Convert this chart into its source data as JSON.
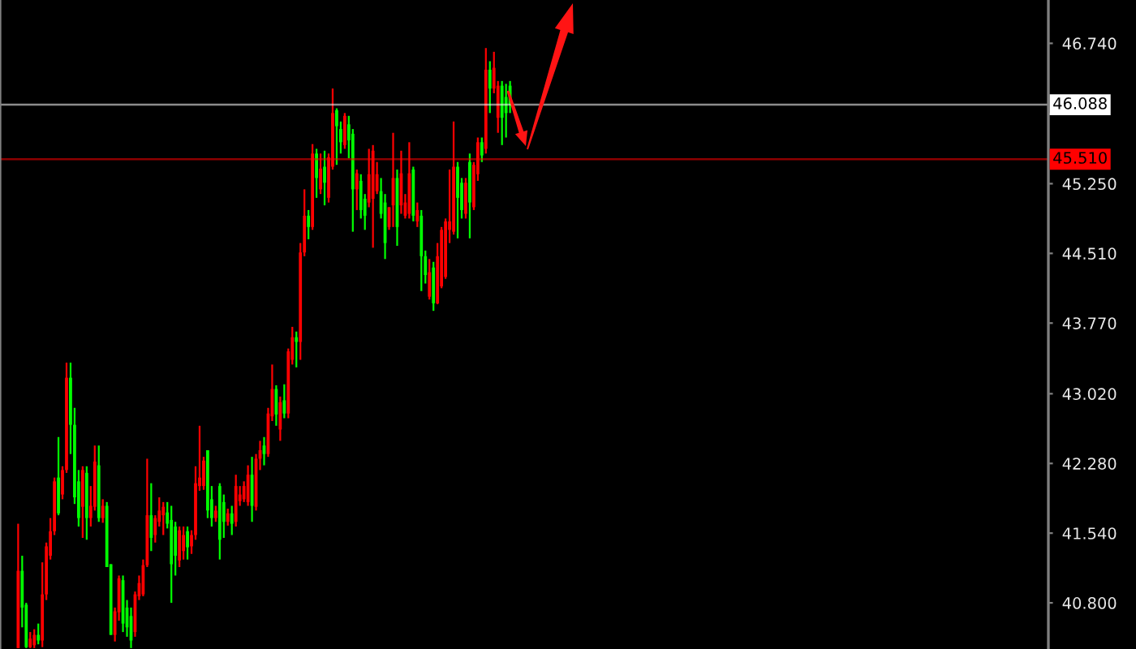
{
  "chart_data": {
    "type": "candlestick",
    "categories": [
      null,
      null,
      null,
      null,
      null,
      null,
      null,
      null,
      null,
      null,
      null,
      null,
      null,
      null,
      null,
      null,
      null,
      null,
      null,
      null,
      null,
      null,
      null,
      null,
      null,
      null,
      null,
      null,
      null,
      null,
      null,
      null,
      null,
      null,
      null,
      null,
      null,
      null,
      null,
      null,
      null,
      null,
      null,
      null,
      null,
      null,
      null,
      null,
      null,
      null,
      null,
      null,
      null,
      null,
      null,
      null,
      null,
      null,
      null,
      null,
      null,
      null,
      null,
      null,
      null,
      null,
      null,
      null,
      null,
      null,
      null,
      null,
      null,
      null,
      null,
      null,
      null,
      null,
      null,
      null,
      null,
      null,
      null,
      null,
      null,
      null,
      null,
      null,
      null,
      null,
      null,
      null,
      null,
      null,
      null,
      null,
      null,
      null,
      null,
      null,
      null,
      null,
      null,
      null,
      null,
      null,
      null,
      null,
      null,
      null,
      null,
      null,
      null,
      null,
      null,
      null,
      null,
      null,
      null,
      null,
      null,
      null,
      null,
      null,
      null,
      null,
      null,
      null,
      null,
      null,
      null,
      null,
      null,
      null,
      null,
      null,
      null,
      null,
      null,
      null,
      null,
      null,
      null,
      null,
      null,
      null,
      null,
      null,
      null,
      null,
      null,
      null,
      null,
      null,
      null,
      null,
      null,
      null,
      null,
      null,
      null,
      null,
      null,
      null,
      null,
      null,
      null,
      null,
      null,
      null,
      null,
      null,
      null,
      null,
      null,
      null,
      null,
      null,
      null,
      null,
      null,
      null,
      null,
      null,
      null,
      null,
      null,
      null,
      null,
      null,
      null,
      null,
      null,
      null,
      null,
      null,
      null,
      null,
      null,
      null,
      null,
      null,
      null,
      null,
      null,
      null,
      null,
      null,
      null,
      null,
      null,
      null,
      null,
      null,
      null,
      null,
      null,
      null,
      null,
      null,
      null,
      null,
      null,
      null,
      null,
      null,
      null,
      null,
      null,
      null,
      null,
      null,
      null,
      null,
      null,
      null,
      null,
      null,
      null,
      null,
      null,
      null,
      null,
      null,
      null,
      null,
      null,
      null,
      null,
      null,
      null,
      null,
      null,
      null,
      null,
      null,
      null,
      null,
      null,
      null
    ],
    "ohlc": [
      null,
      null,
      null,
      null,
      [
        40.32,
        41.64,
        40.32,
        41.14
      ],
      [
        41.14,
        41.3,
        40.54,
        40.75
      ],
      [
        40.78,
        40.8,
        40.32,
        40.33
      ],
      [
        40.33,
        40.49,
        40.32,
        40.42
      ],
      [
        40.35,
        40.52,
        40.32,
        40.46
      ],
      [
        40.46,
        40.58,
        40.36,
        40.4
      ],
      [
        40.4,
        41.23,
        40.33,
        40.89
      ],
      [
        40.89,
        41.44,
        40.83,
        41.4
      ],
      [
        41.3,
        41.7,
        41.26,
        41.56
      ],
      [
        41.56,
        42.13,
        41.52,
        42.09
      ],
      [
        42.13,
        42.56,
        41.73,
        41.75
      ],
      [
        41.95,
        42.25,
        41.9,
        42.21
      ],
      [
        42.21,
        43.35,
        42.18,
        43.19
      ],
      [
        43.19,
        43.35,
        42.38,
        42.69
      ],
      [
        42.69,
        42.87,
        41.85,
        41.92
      ],
      [
        42.09,
        42.21,
        41.61,
        41.7
      ],
      [
        41.82,
        42.25,
        41.49,
        42.21
      ],
      [
        42.18,
        42.25,
        41.47,
        41.7
      ],
      [
        41.7,
        42.04,
        41.61,
        41.83
      ],
      [
        41.82,
        42.47,
        41.78,
        42.3
      ],
      [
        42.26,
        42.47,
        41.66,
        41.7
      ],
      [
        41.7,
        41.9,
        41.65,
        41.83
      ],
      [
        41.83,
        41.87,
        41.18,
        41.18
      ],
      [
        41.21,
        41.21,
        40.46,
        40.46
      ],
      [
        40.46,
        40.75,
        40.39,
        40.71
      ],
      [
        40.7,
        41.09,
        40.61,
        41.06
      ],
      [
        41.04,
        41.09,
        40.49,
        40.58
      ],
      [
        40.75,
        40.83,
        40.44,
        40.54
      ],
      [
        40.66,
        40.75,
        40.32,
        40.4
      ],
      [
        40.49,
        40.92,
        40.44,
        40.89
      ],
      [
        40.87,
        41.09,
        40.83,
        41.01
      ],
      [
        40.89,
        41.26,
        40.87,
        41.2
      ],
      [
        41.2,
        42.33,
        41.18,
        41.73
      ],
      [
        41.73,
        42.07,
        41.35,
        41.49
      ],
      [
        41.52,
        41.73,
        41.44,
        41.7
      ],
      [
        41.66,
        41.92,
        41.61,
        41.78
      ],
      [
        41.73,
        41.87,
        41.52,
        41.82
      ],
      [
        41.76,
        41.87,
        41.59,
        41.64
      ],
      [
        41.68,
        41.83,
        40.8,
        41.21
      ],
      [
        41.61,
        41.66,
        41.09,
        41.3
      ],
      [
        41.25,
        41.61,
        41.18,
        41.57
      ],
      [
        41.35,
        41.61,
        41.26,
        41.52
      ],
      [
        41.56,
        41.61,
        41.26,
        41.39
      ],
      [
        41.4,
        41.57,
        41.32,
        41.52
      ],
      [
        41.52,
        42.25,
        41.47,
        42.07
      ],
      [
        42.04,
        42.68,
        41.99,
        42.13
      ],
      [
        42.04,
        42.35,
        42.0,
        42.31
      ],
      [
        42.42,
        42.42,
        41.7,
        41.78
      ],
      [
        41.9,
        42.04,
        41.61,
        41.7
      ],
      [
        41.7,
        41.83,
        41.66,
        41.78
      ],
      [
        42.04,
        42.07,
        41.26,
        41.47
      ],
      [
        41.87,
        41.95,
        41.49,
        41.66
      ],
      [
        41.66,
        41.8,
        41.62,
        41.75
      ],
      [
        41.75,
        41.83,
        41.52,
        41.64
      ],
      [
        41.66,
        42.16,
        41.61,
        42.04
      ],
      [
        41.88,
        42.04,
        41.83,
        41.95
      ],
      [
        41.9,
        42.09,
        41.87,
        42.04
      ],
      [
        41.87,
        42.26,
        41.83,
        42.16
      ],
      [
        42.16,
        42.35,
        41.66,
        41.83
      ],
      [
        41.82,
        42.38,
        41.78,
        42.33
      ],
      [
        42.33,
        42.52,
        42.21,
        42.42
      ],
      [
        42.47,
        42.56,
        42.26,
        42.38
      ],
      [
        42.38,
        42.87,
        42.35,
        42.81
      ],
      [
        42.78,
        43.33,
        42.73,
        43.07
      ],
      [
        43.07,
        43.11,
        42.68,
        42.8
      ],
      [
        42.64,
        42.99,
        42.52,
        42.93
      ],
      [
        42.95,
        43.12,
        42.76,
        42.81
      ],
      [
        42.81,
        43.5,
        42.76,
        43.47
      ],
      [
        43.38,
        43.73,
        43.33,
        43.62
      ],
      [
        43.62,
        43.68,
        43.3,
        43.57
      ],
      [
        43.57,
        44.62,
        43.38,
        44.52
      ],
      [
        44.52,
        45.19,
        44.48,
        44.91
      ],
      [
        44.91,
        44.97,
        44.66,
        44.79
      ],
      [
        44.79,
        45.67,
        44.76,
        45.57
      ],
      [
        45.57,
        45.62,
        45.1,
        45.31
      ],
      [
        45.19,
        45.57,
        45.14,
        45.41
      ],
      [
        45.43,
        45.6,
        45.02,
        45.26
      ],
      [
        45.1,
        45.57,
        45.05,
        45.53
      ],
      [
        45.43,
        46.26,
        45.4,
        46.0
      ],
      [
        46.03,
        46.05,
        45.45,
        45.86
      ],
      [
        45.83,
        45.91,
        45.57,
        45.69
      ],
      [
        45.66,
        46.0,
        45.62,
        45.97
      ],
      [
        45.88,
        45.97,
        45.52,
        45.71
      ],
      [
        45.78,
        45.83,
        44.74,
        45.19
      ],
      [
        45.19,
        45.4,
        44.97,
        45.36
      ],
      [
        45.28,
        45.35,
        44.88,
        44.97
      ],
      [
        45.09,
        45.14,
        44.76,
        44.91
      ],
      [
        45.05,
        45.62,
        45.0,
        45.35
      ],
      [
        45.09,
        45.66,
        44.57,
        45.6
      ],
      [
        45.17,
        45.48,
        45.14,
        45.35
      ],
      [
        45.17,
        45.31,
        44.88,
        44.93
      ],
      [
        45.05,
        45.14,
        44.45,
        44.62
      ],
      [
        44.79,
        45.0,
        44.76,
        45.0
      ],
      [
        45.02,
        45.79,
        44.79,
        45.31
      ],
      [
        45.31,
        45.4,
        44.59,
        44.79
      ],
      [
        45.02,
        45.6,
        44.93,
        45.36
      ],
      [
        44.91,
        45.14,
        44.88,
        45.05
      ],
      [
        44.93,
        45.69,
        44.88,
        45.36
      ],
      [
        45.4,
        45.43,
        44.85,
        44.91
      ],
      [
        44.85,
        45.05,
        44.79,
        44.97
      ],
      [
        44.91,
        44.97,
        44.11,
        44.48
      ],
      [
        44.48,
        44.54,
        44.19,
        44.28
      ],
      [
        44.05,
        44.45,
        44.02,
        44.31
      ],
      [
        44.36,
        44.42,
        43.9,
        43.98
      ],
      [
        43.98,
        44.62,
        43.97,
        44.48
      ],
      [
        44.16,
        44.79,
        44.14,
        44.76
      ],
      [
        44.26,
        44.88,
        44.24,
        44.85
      ],
      [
        44.76,
        45.4,
        44.62,
        44.85
      ],
      [
        44.74,
        45.91,
        44.71,
        45.43
      ],
      [
        45.43,
        45.48,
        44.67,
        45.1
      ],
      [
        45.26,
        45.31,
        44.88,
        44.97
      ],
      [
        44.93,
        45.31,
        44.88,
        45.26
      ],
      [
        45.48,
        45.57,
        44.67,
        45.05
      ],
      [
        45.0,
        45.48,
        44.97,
        45.45
      ],
      [
        45.35,
        45.74,
        45.28,
        45.69
      ],
      [
        45.69,
        45.74,
        45.48,
        45.55
      ],
      [
        45.62,
        46.69,
        45.57,
        46.46
      ],
      [
        46.46,
        46.55,
        46.0,
        46.26
      ],
      [
        46.26,
        46.65,
        46.21,
        46.48
      ],
      [
        45.95,
        46.34,
        45.79,
        46.29
      ],
      [
        46.29,
        46.34,
        45.66,
        45.95
      ],
      [
        46.17,
        46.31,
        45.74,
        46.0
      ],
      [
        46.29,
        46.34,
        46.0,
        46.09
      ],
      null,
      null,
      null,
      null,
      null,
      null,
      null,
      null,
      null,
      null,
      null,
      null,
      null,
      null,
      null,
      null,
      null,
      null,
      null,
      null,
      null,
      null,
      null,
      null,
      null,
      null,
      null,
      null,
      null,
      null,
      null,
      null,
      null,
      null,
      null,
      null,
      null,
      null,
      null,
      null,
      null,
      null,
      null,
      null,
      null,
      null,
      null,
      null,
      null,
      null,
      null,
      null,
      null,
      null,
      null,
      null,
      null,
      null,
      null,
      null,
      null,
      null,
      null,
      null,
      null,
      null,
      null,
      null,
      null,
      null,
      null,
      null,
      null,
      null,
      null,
      null,
      null,
      null,
      null,
      null,
      null,
      null,
      null,
      null,
      null,
      null,
      null,
      null,
      null,
      null,
      null,
      null,
      null,
      null,
      null,
      null,
      null,
      null,
      null,
      null,
      null,
      null,
      null,
      null,
      null,
      null,
      null,
      null,
      null,
      null,
      null,
      null,
      null,
      null,
      null,
      null,
      null,
      null,
      null,
      null,
      null,
      null,
      null,
      null,
      null,
      null,
      null,
      null,
      null,
      null,
      null,
      null,
      null
    ],
    "colors": [
      null,
      null,
      null,
      null,
      "#ff0000",
      "#00ff00",
      "#00ff00",
      "#ff0000",
      "#ff0000",
      "#00ff00",
      "#ff0000",
      "#ff0000",
      "#ff0000",
      "#ff0000",
      "#00ff00",
      "#ff0000",
      "#ff0000",
      "#00ff00",
      "#00ff00",
      "#00ff00",
      "#ff0000",
      "#00ff00",
      "#ff0000",
      "#ff0000",
      "#00ff00",
      "#ff0000",
      "#00ff00",
      "#00ff00",
      "#ff0000",
      "#ff0000",
      "#00ff00",
      "#00ff00",
      "#00ff00",
      "#ff0000",
      "#ff0000",
      "#ff0000",
      "#ff0000",
      "#00ff00",
      "#ff0000",
      "#ff0000",
      "#ff0000",
      "#00ff00",
      "#00ff00",
      "#00ff00",
      "#ff0000",
      "#ff0000",
      "#00ff00",
      "#ff0000",
      "#ff0000",
      "#ff0000",
      "#ff0000",
      "#00ff00",
      "#00ff00",
      "#ff0000",
      "#00ff00",
      "#00ff00",
      "#ff0000",
      "#00ff00",
      "#ff0000",
      "#ff0000",
      "#ff0000",
      "#ff0000",
      "#00ff00",
      "#ff0000",
      "#ff0000",
      "#00ff00",
      "#ff0000",
      "#ff0000",
      "#00ff00",
      "#ff0000",
      "#00ff00",
      "#ff0000",
      "#ff0000",
      "#00ff00",
      "#ff0000",
      "#ff0000",
      "#00ff00",
      "#ff0000",
      "#00ff00",
      "#ff0000",
      "#00ff00",
      "#ff0000",
      "#ff0000",
      "#00ff00",
      "#00ff00",
      "#ff0000",
      "#00ff00",
      "#00ff00",
      "#ff0000",
      "#00ff00",
      "#00ff00",
      "#ff0000",
      "#ff0000",
      "#ff0000",
      "#00ff00",
      "#00ff00",
      "#ff0000",
      "#ff0000",
      "#00ff00",
      "#ff0000",
      "#ff0000",
      "#ff0000",
      "#00ff00",
      "#ff0000",
      "#00ff00",
      "#00ff00",
      "#ff0000",
      "#00ff00",
      "#ff0000",
      "#ff0000",
      "#ff0000",
      "#ff0000",
      "#ff0000",
      "#00ff00",
      "#00ff00",
      "#ff0000",
      "#00ff00",
      "#ff0000",
      "#ff0000",
      "#00ff00",
      "#ff0000",
      "#00ff00",
      "#ff0000",
      "#ff0000",
      "#00ff00",
      "#00ff00",
      "#00ff00",
      null,
      null,
      null,
      null,
      null,
      null,
      null,
      null,
      null,
      null,
      null,
      null,
      null,
      null,
      null,
      null,
      null,
      null,
      null,
      null,
      null,
      null,
      null,
      null,
      null,
      null,
      null,
      null,
      null,
      null,
      null,
      null,
      null,
      null,
      null,
      null,
      null,
      null,
      null,
      null,
      null,
      null,
      null,
      null,
      null,
      null,
      null,
      null,
      null,
      null,
      null,
      null,
      null,
      null,
      null,
      null,
      null,
      null,
      null,
      null,
      null,
      null,
      null,
      null,
      null,
      null,
      null,
      null,
      null,
      null,
      null,
      null,
      null,
      null,
      null,
      null,
      null,
      null,
      null,
      null,
      null,
      null,
      null,
      null,
      null,
      null,
      null,
      null,
      null,
      null,
      null,
      null,
      null,
      null,
      null,
      null,
      null,
      null,
      null,
      null,
      null,
      null,
      null,
      null,
      null,
      null,
      null,
      null,
      null,
      null,
      null,
      null,
      null,
      null,
      null,
      null,
      null,
      null,
      null,
      null,
      null,
      null,
      null,
      null,
      null,
      null,
      null,
      null,
      null,
      null,
      null,
      null,
      null
    ],
    "ylim": [
      40.31,
      47.2
    ],
    "yticks": [
      {
        "value": 46.74,
        "label": "46.740"
      },
      {
        "value": 45.99,
        "label": null
      },
      {
        "value": 45.25,
        "label": "45.250"
      },
      {
        "value": 44.51,
        "label": "44.510"
      },
      {
        "value": 43.77,
        "label": "43.770"
      },
      {
        "value": 43.02,
        "label": "43.020"
      },
      {
        "value": 42.28,
        "label": "42.280"
      },
      {
        "value": 41.54,
        "label": "41.540"
      },
      {
        "value": 40.8,
        "label": "40.800"
      }
    ],
    "ref_lines": [
      {
        "axis": "y",
        "value": 46.088,
        "label": "46.088",
        "color": "#ffffff"
      },
      {
        "axis": "y",
        "value": 45.51,
        "label": "45.510",
        "color": "#ff0000"
      }
    ],
    "tick_labels": "y"
  }
}
